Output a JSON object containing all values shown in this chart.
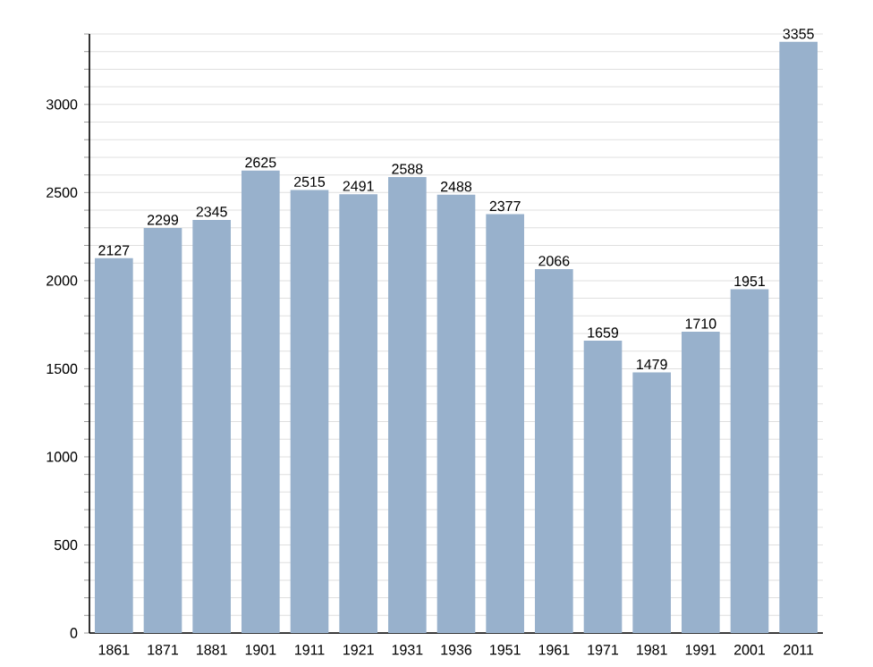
{
  "chart_data": {
    "type": "bar",
    "categories": [
      "1861",
      "1871",
      "1881",
      "1901",
      "1911",
      "1921",
      "1931",
      "1936",
      "1951",
      "1961",
      "1971",
      "1981",
      "1991",
      "2001",
      "2011"
    ],
    "values": [
      2127,
      2299,
      2345,
      2625,
      2515,
      2491,
      2588,
      2488,
      2377,
      2066,
      1659,
      1479,
      1710,
      1951,
      3355
    ],
    "color": "#98b1cc",
    "data_labels": true,
    "ylim": [
      0,
      3400
    ],
    "yticks": [
      0,
      {
        "value": 100,
        "label": null
      },
      {
        "value": 200,
        "label": null
      },
      {
        "value": 300,
        "label": null
      },
      {
        "value": 400,
        "label": null
      },
      500,
      {
        "value": 600,
        "label": null
      },
      {
        "value": 700,
        "label": null
      },
      {
        "value": 800,
        "label": null
      },
      {
        "value": 900,
        "label": null
      },
      1000,
      {
        "value": 1100,
        "label": null
      },
      {
        "value": 1200,
        "label": null
      },
      {
        "value": 1300,
        "label": null
      },
      {
        "value": 1400,
        "label": null
      },
      1500,
      {
        "value": 1600,
        "label": null
      },
      {
        "value": 1700,
        "label": null
      },
      {
        "value": 1800,
        "label": null
      },
      {
        "value": 1900,
        "label": null
      },
      2000,
      {
        "value": 2100,
        "label": null
      },
      {
        "value": 2200,
        "label": null
      },
      {
        "value": 2300,
        "label": null
      },
      {
        "value": 2400,
        "label": null
      },
      2500,
      {
        "value": 2600,
        "label": null
      },
      {
        "value": 2700,
        "label": null
      },
      {
        "value": 2800,
        "label": null
      },
      {
        "value": 2900,
        "label": null
      },
      3000,
      {
        "value": 3100,
        "label": null
      },
      {
        "value": 3200,
        "label": null
      },
      {
        "value": 3300,
        "label": null
      },
      {
        "value": 3400,
        "label": null
      }
    ],
    "grid": "y"
  }
}
